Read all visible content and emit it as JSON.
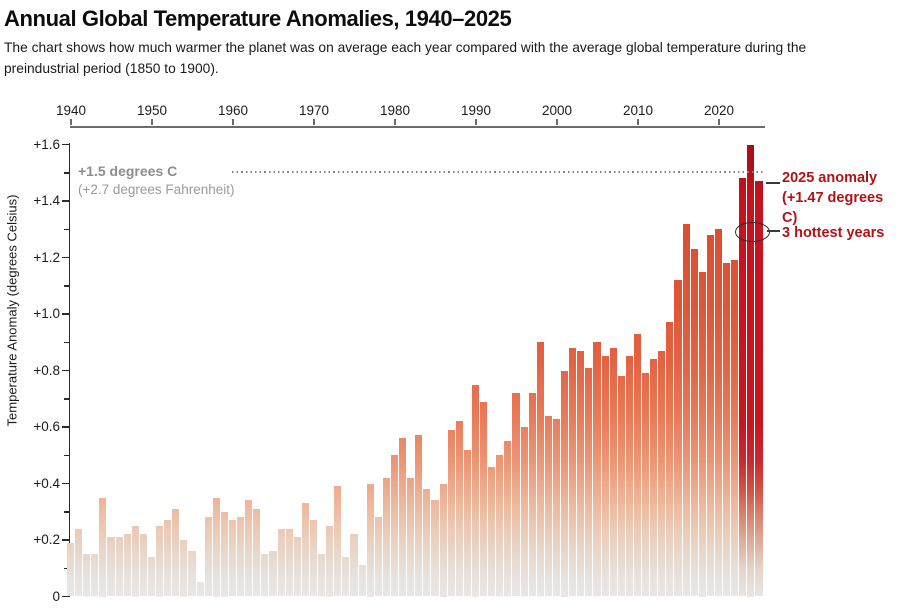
{
  "header": {
    "title": "Annual Global Temperature Anomalies, 1940–2025",
    "subtitle": "The chart shows how much warmer the planet was on average each year compared with the average global temperature during the preindustrial period (1850 to 1900)."
  },
  "y_axis": {
    "label": "Temperature Anomaly (degrees Celsius)",
    "tick_labels": [
      "+1.6",
      "+1.4",
      "+1.2",
      "+1.0",
      "+0.8",
      "+0.6",
      "+0.4",
      "+0.2",
      "0"
    ]
  },
  "x_axis": {
    "tick_labels": [
      "1940",
      "1950",
      "1960",
      "1970",
      "1980",
      "1990",
      "2000",
      "2010",
      "2020"
    ]
  },
  "reference_line": {
    "value": 1.5,
    "label_celsius": "+1.5 degrees C",
    "label_fahrenheit": "(+2.7 degrees Fahrenheit)"
  },
  "annotations": {
    "anomaly_2025_line1": "2025 anomaly",
    "anomaly_2025_line2": "(+1.47 degrees C)",
    "hottest_years": "3 hottest years"
  },
  "colors": {
    "annotation_red": "#b01218",
    "hot_bar_red": "#c8161f",
    "bar_gradient_top": "#d74b2e",
    "bar_gradient_bottom": "#e9e7e6",
    "axis_dark": "#2a2a2a",
    "axis_gray": "#6b6b6b",
    "reference_gray": "#8d8d8d"
  },
  "chart_data": {
    "type": "bar",
    "title": "Annual Global Temperature Anomalies, 1940–2025",
    "ylabel": "Temperature Anomaly (degrees Celsius)",
    "unit": "degrees C above 1850–1900 preindustrial average",
    "ylim": [
      0,
      1.6
    ],
    "y_major_tick_step": 0.2,
    "y_minor_tick_step": 0.1,
    "grid": false,
    "legend": false,
    "reference_value": 1.5,
    "highlight_years": [
      2023,
      2024,
      2025
    ],
    "x": [
      1940,
      1941,
      1942,
      1943,
      1944,
      1945,
      1946,
      1947,
      1948,
      1949,
      1950,
      1951,
      1952,
      1953,
      1954,
      1955,
      1956,
      1957,
      1958,
      1959,
      1960,
      1961,
      1962,
      1963,
      1964,
      1965,
      1966,
      1967,
      1968,
      1969,
      1970,
      1971,
      1972,
      1973,
      1974,
      1975,
      1976,
      1977,
      1978,
      1979,
      1980,
      1981,
      1982,
      1983,
      1984,
      1985,
      1986,
      1987,
      1988,
      1989,
      1990,
      1991,
      1992,
      1993,
      1994,
      1995,
      1996,
      1997,
      1998,
      1999,
      2000,
      2001,
      2002,
      2003,
      2004,
      2005,
      2006,
      2007,
      2008,
      2009,
      2010,
      2011,
      2012,
      2013,
      2014,
      2015,
      2016,
      2017,
      2018,
      2019,
      2020,
      2021,
      2022,
      2023,
      2024,
      2025
    ],
    "values": [
      0.19,
      0.24,
      0.15,
      0.15,
      0.35,
      0.21,
      0.21,
      0.22,
      0.25,
      0.22,
      0.14,
      0.25,
      0.27,
      0.31,
      0.2,
      0.16,
      0.05,
      0.28,
      0.35,
      0.3,
      0.27,
      0.28,
      0.34,
      0.31,
      0.15,
      0.16,
      0.24,
      0.24,
      0.21,
      0.33,
      0.27,
      0.15,
      0.25,
      0.39,
      0.14,
      0.22,
      0.11,
      0.4,
      0.28,
      0.42,
      0.5,
      0.56,
      0.42,
      0.57,
      0.38,
      0.34,
      0.4,
      0.59,
      0.62,
      0.52,
      0.75,
      0.69,
      0.46,
      0.5,
      0.55,
      0.72,
      0.6,
      0.72,
      0.9,
      0.64,
      0.63,
      0.8,
      0.88,
      0.87,
      0.81,
      0.9,
      0.85,
      0.88,
      0.78,
      0.85,
      0.93,
      0.79,
      0.84,
      0.87,
      0.97,
      1.12,
      1.32,
      1.23,
      1.15,
      1.28,
      1.3,
      1.18,
      1.19,
      1.48,
      1.6,
      1.47
    ]
  }
}
